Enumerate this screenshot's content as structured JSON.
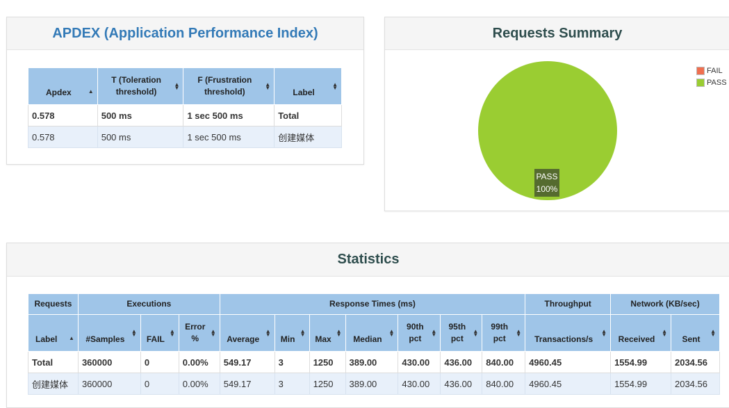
{
  "apdex": {
    "title": "APDEX (Application Performance Index)",
    "columns": [
      "Apdex",
      "T (Toleration threshold)",
      "F (Frustration threshold)",
      "Label"
    ],
    "rows": [
      [
        "0.578",
        "500 ms",
        "1 sec 500 ms",
        "Total"
      ],
      [
        "0.578",
        "500 ms",
        "1 sec 500 ms",
        "创建媒体"
      ]
    ]
  },
  "summary": {
    "title": "Requests Summary",
    "legend": [
      {
        "label": "FAIL",
        "color": "#f06f4f"
      },
      {
        "label": "PASS",
        "color": "#9acd32"
      }
    ],
    "pie_label": {
      "name": "PASS",
      "value": "100%"
    }
  },
  "chart_data": {
    "type": "pie",
    "title": "Requests Summary",
    "categories": [
      "FAIL",
      "PASS"
    ],
    "values": [
      0,
      100
    ],
    "colors": [
      "#f06f4f",
      "#9acd32"
    ],
    "legend_position": "top-right"
  },
  "statistics": {
    "title": "Statistics",
    "groups": [
      "Requests",
      "Executions",
      "Response Times (ms)",
      "Throughput",
      "Network (KB/sec)"
    ],
    "columns": [
      "Label",
      "#Samples",
      "FAIL",
      "Error %",
      "Average",
      "Min",
      "Max",
      "Median",
      "90th pct",
      "95th pct",
      "99th pct",
      "Transactions/s",
      "Received",
      "Sent"
    ],
    "rows": [
      [
        "Total",
        "360000",
        "0",
        "0.00%",
        "549.17",
        "3",
        "1250",
        "389.00",
        "430.00",
        "436.00",
        "840.00",
        "4960.45",
        "1554.99",
        "2034.56"
      ],
      [
        "创建媒体",
        "360000",
        "0",
        "0.00%",
        "549.17",
        "3",
        "1250",
        "389.00",
        "430.00",
        "436.00",
        "840.00",
        "4960.45",
        "1554.99",
        "2034.56"
      ]
    ]
  }
}
